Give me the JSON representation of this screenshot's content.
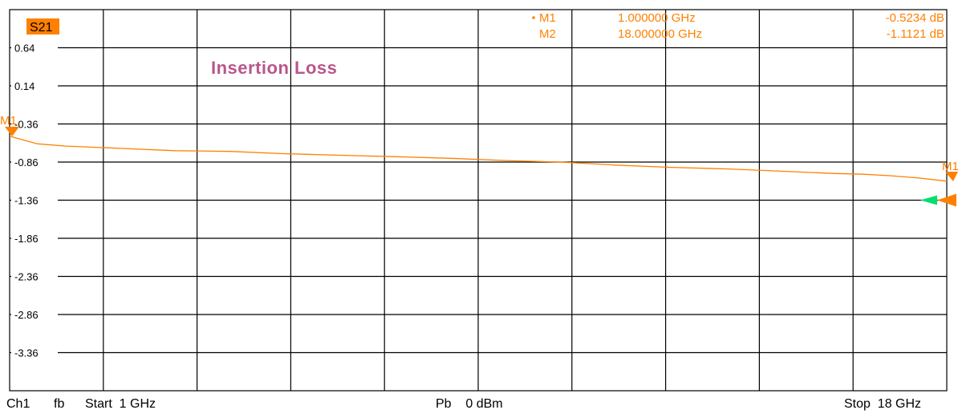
{
  "chart_data": {
    "type": "line",
    "trace_name": "S21",
    "annotation": "Insertion Loss",
    "x_unit": "GHz",
    "xlim": [
      1,
      18
    ],
    "ylim": [
      -3.86,
      1.14
    ],
    "y_ticks": [
      "0.64",
      "0.14",
      "-0.36",
      "-0.86",
      "-1.36",
      "-1.86",
      "-2.36",
      "-2.86",
      "-3.36"
    ],
    "y_tick_values": [
      0.64,
      0.14,
      -0.36,
      -0.86,
      -1.36,
      -1.86,
      -2.36,
      -2.86,
      -3.36
    ],
    "reference_level": -1.36,
    "grid": true,
    "series": [
      {
        "color": "#ff8000",
        "x": [
          1,
          1.5,
          2,
          3,
          4,
          5,
          6,
          7,
          8,
          9,
          10,
          11,
          12,
          13,
          14,
          15,
          16,
          16.5,
          17,
          17.5,
          18
        ],
        "y": [
          -0.52,
          -0.62,
          -0.65,
          -0.68,
          -0.71,
          -0.72,
          -0.75,
          -0.77,
          -0.79,
          -0.81,
          -0.84,
          -0.86,
          -0.9,
          -0.93,
          -0.95,
          -0.98,
          -1.01,
          -1.02,
          -1.04,
          -1.07,
          -1.11
        ]
      }
    ],
    "markers": [
      {
        "label": "M1",
        "x": 1,
        "y": -0.5234,
        "freq_text": "1.000000 GHz",
        "value_text": "-0.5234 dB",
        "active": true
      },
      {
        "label": "M2",
        "x": 18,
        "y": -1.1121,
        "freq_text": "18.000000 GHz",
        "value_text": "-1.1121 dB",
        "active": false
      }
    ],
    "edge_marker_tag": "M1",
    "colors": {
      "trace": "#ff8000",
      "grid": "#000000",
      "annotation": "#b8578a",
      "badge": "#ff8000",
      "ref_marker": "#00e070"
    }
  },
  "footer": {
    "channel": "Ch1",
    "mode": "fb",
    "start": "Start  1 GHz",
    "power": "Pb    0 dBm",
    "stop": "Stop  18 GHz"
  }
}
